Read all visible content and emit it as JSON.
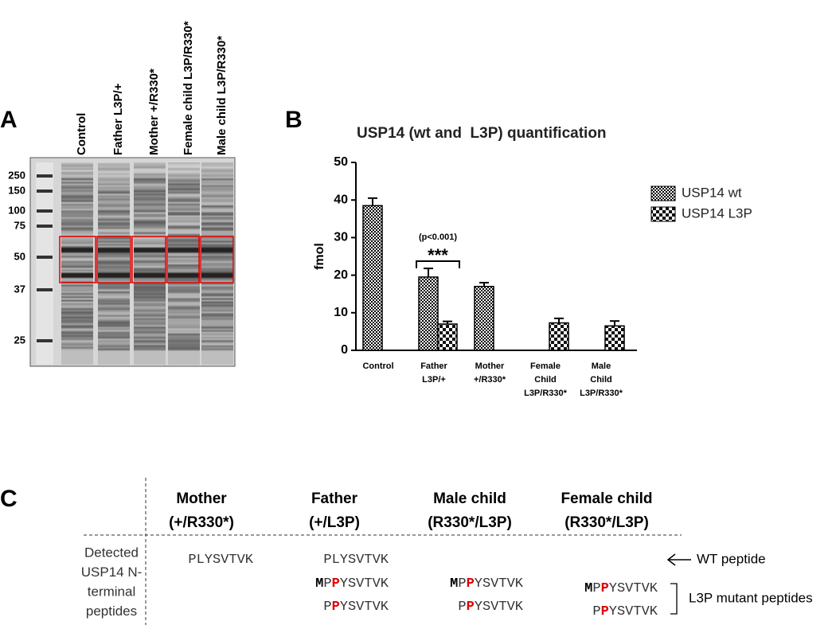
{
  "panel_a": {
    "label": "A",
    "lanes": [
      "Control",
      "Father L3P/+",
      "Mother +/R330*",
      "Female child L3P/R330*",
      "Male child L3P/R330*"
    ],
    "markers": [
      250,
      150,
      100,
      75,
      50,
      37,
      25
    ]
  },
  "chart_data": {
    "type": "bar",
    "label": "B",
    "title": "USP14 (wt and  L3P) quantification",
    "y_label": "fmol",
    "categories": [
      [
        "Control"
      ],
      [
        "Father",
        "L3P/+"
      ],
      [
        "Mother",
        "+/R330*"
      ],
      [
        "Female",
        "Child",
        "L3P/R330*"
      ],
      [
        "Male",
        "Child",
        "L3P/R330*"
      ]
    ],
    "series": [
      {
        "name": "USP14 wt",
        "color": "#000000",
        "pattern": "fine-check",
        "values": [
          38.5,
          19.5,
          17,
          null,
          null
        ],
        "errors": [
          2,
          2.3,
          1,
          null,
          null
        ]
      },
      {
        "name": "USP14 L3P",
        "color": "#000000",
        "pattern": "coarse-check",
        "values": [
          null,
          7,
          null,
          7.3,
          6.5
        ],
        "errors": [
          null,
          0.7,
          null,
          1.2,
          1.3
        ]
      }
    ],
    "ylim": [
      0,
      50
    ],
    "yticks": [
      0,
      10,
      20,
      30,
      40,
      50
    ],
    "legend": "top-right",
    "annotations": [
      "(p<0.001)",
      "***"
    ]
  },
  "panel_c": {
    "label": "C",
    "row_label": [
      "Detected",
      "USP14 N-",
      "terminal",
      "peptides"
    ],
    "columns": [
      {
        "header": [
          "Mother",
          "(+/R330*)"
        ],
        "peptides": [
          [
            {
              "text": "PLYSVTVK"
            }
          ],
          null,
          null
        ]
      },
      {
        "header": [
          "Father",
          "(+/L3P)"
        ],
        "peptides": [
          [
            {
              "text": "PLYSVTVK"
            }
          ],
          [
            {
              "text": "M",
              "bold": true
            },
            {
              "text": "P"
            },
            {
              "text": "P",
              "mutant": true
            },
            {
              "text": "YSVTVK"
            }
          ],
          [
            {
              "text": "P"
            },
            {
              "text": "P",
              "mutant": true
            },
            {
              "text": "YSVTVK"
            }
          ]
        ]
      },
      {
        "header": [
          "Male child",
          "(R330*/L3P)"
        ],
        "peptides": [
          null,
          [
            {
              "text": "M",
              "bold": true
            },
            {
              "text": "P"
            },
            {
              "text": "P",
              "mutant": true
            },
            {
              "text": "YSVTVK"
            }
          ],
          [
            {
              "text": "P"
            },
            {
              "text": "P",
              "mutant": true
            },
            {
              "text": "YSVTVK"
            }
          ]
        ]
      },
      {
        "header": [
          "Female child",
          "(R330*/L3P)"
        ],
        "peptides": [
          null,
          [
            {
              "text": "M",
              "bold": true
            },
            {
              "text": "P"
            },
            {
              "text": "P",
              "mutant": true
            },
            {
              "text": "YSVTVK"
            }
          ],
          [
            {
              "text": "P"
            },
            {
              "text": "P",
              "mutant": true
            },
            {
              "text": "YSVTVK"
            }
          ]
        ]
      }
    ],
    "wt_note": "WT peptide",
    "mutant_note": "L3P mutant peptides"
  }
}
